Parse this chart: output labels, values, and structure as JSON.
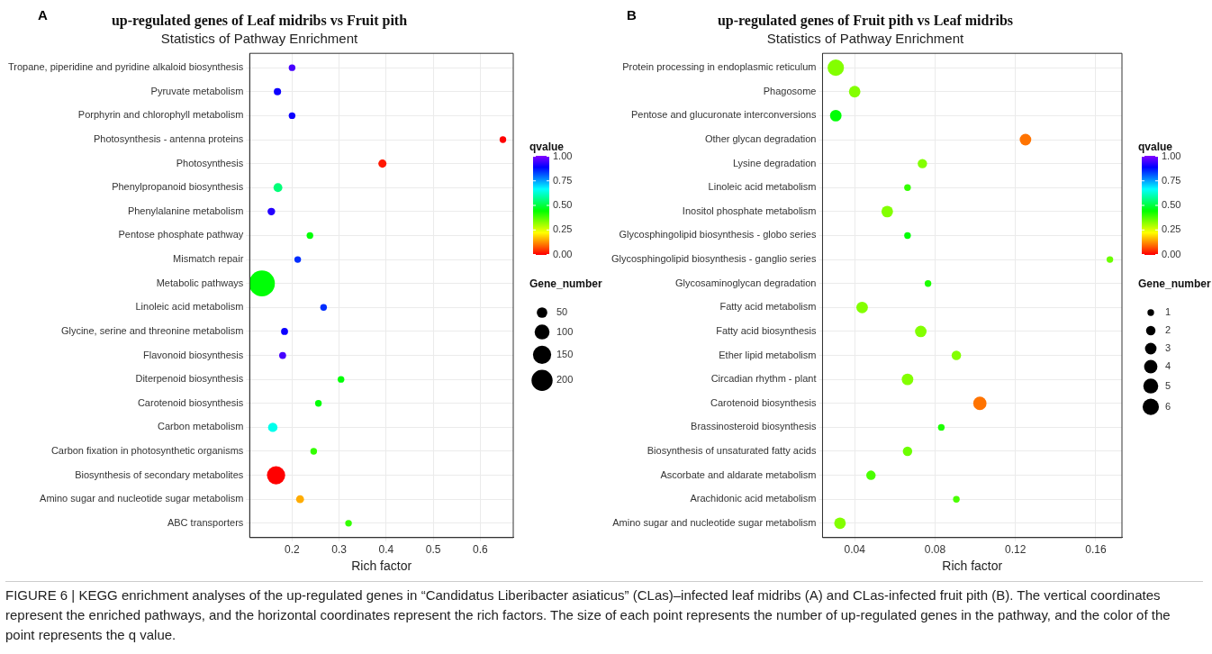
{
  "chart_data": [
    {
      "type": "bubble",
      "orientation": "horizontal",
      "title": "up-regulated genes of Leaf midribs vs Fruit pith",
      "subtitle": "Statistics of Pathway Enrichment",
      "xlabel": "Rich factor",
      "clabel": "qvalue",
      "legend_title": "Gene_number",
      "grid": true,
      "categories": [
        "Tropane, piperidine and pyridine alkaloid biosynthesis",
        "Pyruvate metabolism",
        "Porphyrin and chlorophyll metabolism",
        "Photosynthesis - antenna proteins",
        "Photosynthesis",
        "Phenylpropanoid biosynthesis",
        "Phenylalanine metabolism",
        "Pentose phosphate pathway",
        "Mismatch repair",
        "Metabolic pathways",
        "Linoleic acid metabolism",
        "Glycine, serine and threonine metabolism",
        "Flavonoid biosynthesis",
        "Diterpenoid biosynthesis",
        "Carotenoid biosynthesis",
        "Carbon metabolism",
        "Carbon fixation in photosynthetic organisms",
        "Biosynthesis of secondary metabolites",
        "Amino sugar and nucleotide sugar metabolism",
        "ABC transporters"
      ],
      "values": [
        0.2,
        0.169,
        0.2,
        0.648,
        0.392,
        0.17,
        0.156,
        0.238,
        0.212,
        0.136,
        0.267,
        0.184,
        0.18,
        0.304,
        0.256,
        0.159,
        0.246,
        0.166,
        0.217,
        0.32
      ],
      "sizes": [
        20,
        24,
        20,
        20,
        30,
        35,
        26,
        20,
        20,
        300,
        20,
        22,
        22,
        20,
        20,
        40,
        20,
        150,
        28,
        20
      ],
      "cvalues": [
        0.95,
        0.9,
        0.9,
        0.0,
        0.02,
        0.55,
        0.92,
        0.45,
        0.85,
        0.45,
        0.85,
        0.9,
        0.95,
        0.45,
        0.45,
        0.65,
        0.4,
        0.0,
        0.15,
        0.4
      ],
      "size_legend": [
        50,
        100,
        150,
        200
      ],
      "clim": [
        0,
        1
      ],
      "cticks": [
        {
          "value": 0,
          "label": "0.00"
        },
        {
          "value": 0.25,
          "label": "0.25"
        },
        {
          "value": 0.5,
          "label": "0.50"
        },
        {
          "value": 0.75,
          "label": "0.75"
        },
        {
          "value": 1,
          "label": "1.00"
        }
      ],
      "xlim": [
        0.11,
        0.67
      ],
      "xticks": [
        0.2,
        0.3,
        0.4,
        0.5,
        0.6
      ],
      "annotations": [
        "A",
        "FIGURE 6 | KEGG enrichment analyses of the up-regulated genes in “Candidatus Liberibacter asiaticus” (CLas)–infected leaf midribs (A) and CLas-infected fruit pith (B). The vertical coordinates represent the enriched pathways, and the horizontal coordinates represent the rich factors. The size of each point represents the number of up-regulated genes in the pathway, and the color of the point represents the q value."
      ]
    },
    {
      "type": "bubble",
      "orientation": "horizontal",
      "title": "up-regulated genes of Fruit pith vs Leaf midribs",
      "subtitle": "Statistics of Pathway Enrichment",
      "xlabel": "Rich factor",
      "clabel": "qvalue",
      "legend_title": "Gene_number",
      "grid": true,
      "categories": [
        "Protein processing in endoplasmic reticulum",
        "Phagosome",
        "Pentose and glucuronate interconversions",
        "Other glycan degradation",
        "Lysine degradation",
        "Linoleic acid metabolism",
        "Inositol phosphate metabolism",
        "Glycosphingolipid biosynthesis - globo series",
        "Glycosphingolipid biosynthesis - ganglio series",
        "Glycosaminoglycan degradation",
        "Fatty acid metabolism",
        "Fatty acid biosynthesis",
        "Ether lipid metabolism",
        "Circadian rhythm - plant",
        "Carotenoid biosynthesis",
        "Brassinosteroid biosynthesis",
        "Biosynthesis of unsaturated fatty acids",
        "Ascorbate and aldarate metabolism",
        "Arachidonic acid metabolism",
        "Amino sugar and nucleotide sugar metabolism"
      ],
      "values": [
        0.0306,
        0.04,
        0.0306,
        0.125,
        0.0737,
        0.0663,
        0.0562,
        0.0663,
        0.167,
        0.0765,
        0.0437,
        0.0729,
        0.0906,
        0.0663,
        0.1023,
        0.0831,
        0.0663,
        0.0481,
        0.0906,
        0.0327
      ],
      "sizes": [
        6,
        3,
        3,
        3,
        2,
        1,
        3,
        1,
        1,
        1,
        3,
        3,
        2,
        3,
        4,
        1,
        2,
        2,
        1,
        3
      ],
      "cvalues": [
        0.33,
        0.33,
        0.45,
        0.1,
        0.33,
        0.4,
        0.33,
        0.45,
        0.35,
        0.42,
        0.33,
        0.33,
        0.33,
        0.33,
        0.1,
        0.42,
        0.35,
        0.38,
        0.38,
        0.33
      ],
      "size_legend": [
        1,
        2,
        3,
        4,
        5,
        6
      ],
      "clim": [
        0,
        1
      ],
      "cticks": [
        {
          "value": 0,
          "label": "0.00"
        },
        {
          "value": 0.25,
          "label": "0.25"
        },
        {
          "value": 0.5,
          "label": "0.50"
        },
        {
          "value": 0.75,
          "label": "0.75"
        },
        {
          "value": 1,
          "label": "1.00"
        }
      ],
      "xlim": [
        0.024,
        0.173
      ],
      "xticks": [
        0.04,
        0.08,
        0.12,
        0.16
      ],
      "annotations": [
        "B"
      ]
    }
  ]
}
